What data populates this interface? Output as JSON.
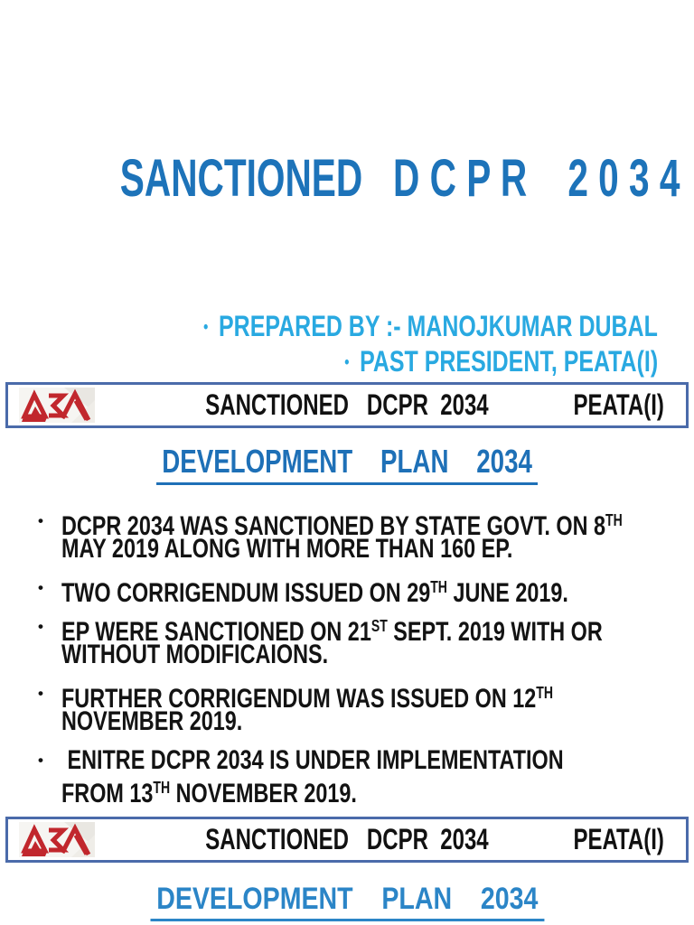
{
  "colors": {
    "title_blue": "#1d73b9",
    "cyan": "#29a9e1",
    "heading1_blue": "#1e70b7",
    "heading2_blue": "#2b85c7",
    "bar_border": "#4b6baa",
    "bar_text": "#111111",
    "body_text": "#131313",
    "logo_red": "#c1272d"
  },
  "cover": {
    "title": "SANCTIONED   D C P R    2 0 3 4",
    "bullet_char": "•",
    "prepared_by": "PREPARED BY :- MANOJKUMAR DUBAL",
    "past_president": "PAST PRESIDENT, PEATA(I)"
  },
  "slide2": {
    "header": {
      "logo_name": "peata-logo",
      "title": "SANCTIONED   DCPR  2034",
      "right": "PEATA(I)"
    },
    "heading": "DEVELOPMENT    PLAN    2034",
    "bullet_char": "•",
    "bullets": [
      {
        "lines": [
          [
            {
              "t": "DCPR 2034 WAS SANCTIONED BY STATE GOVT. ON 8"
            },
            {
              "t": "TH",
              "sup": true
            }
          ],
          [
            {
              "t": "MAY 2019 ALONG WITH MORE THAN 160 EP."
            }
          ]
        ]
      },
      {
        "lines": [
          [
            {
              "t": "TWO CORRIGENDUM ISSUED ON 29"
            },
            {
              "t": "TH",
              "sup": true
            },
            {
              "t": " JUNE 2019."
            }
          ]
        ]
      },
      {
        "lines": [
          [
            {
              "t": "EP WERE SANCTIONED ON 21"
            },
            {
              "t": "ST",
              "sup": true
            },
            {
              "t": " SEPT. 2019 WITH OR"
            }
          ],
          [
            {
              "t": "WITHOUT MODIFICAIONS."
            }
          ]
        ]
      },
      {
        "lines": [
          [
            {
              "t": "FURTHER CORRIGENDUM WAS ISSUED ON 12"
            },
            {
              "t": "TH",
              "sup": true
            }
          ],
          [
            {
              "t": "NOVEMBER 2019."
            }
          ]
        ]
      },
      {
        "lines": [
          [
            {
              "t": " ENITRE DCPR 2034 IS UNDER IMPLEMENTATION"
            }
          ],
          [
            {
              "t": "FROM 13"
            },
            {
              "t": "TH",
              "sup": true
            },
            {
              "t": " NOVEMBER 2019."
            }
          ]
        ]
      }
    ]
  },
  "slide3": {
    "header": {
      "logo_name": "peata-logo",
      "title": "SANCTIONED   DCPR  2034",
      "right": "PEATA(I)"
    },
    "heading": "DEVELOPMENT    PLAN    2034"
  }
}
